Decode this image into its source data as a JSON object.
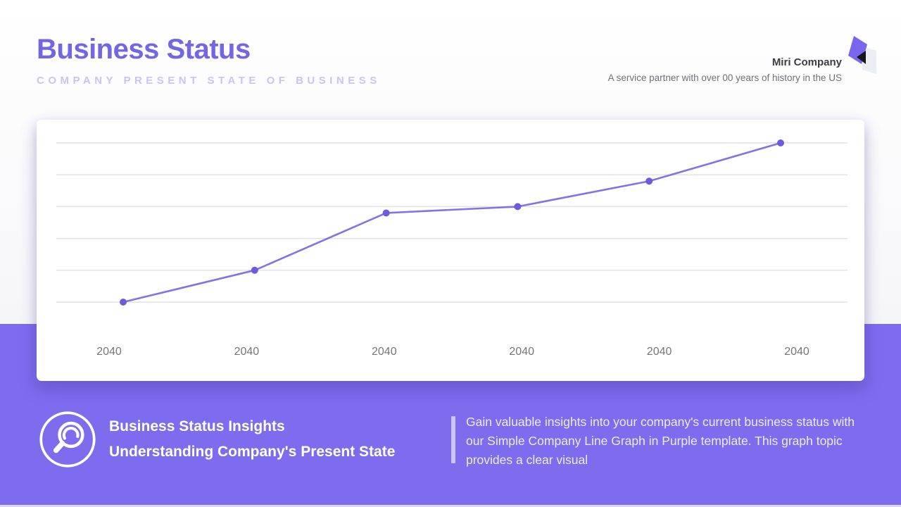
{
  "header": {
    "title": "Business Status",
    "subtitle": "COMPANY PRESENT STATE OF BUSINESS",
    "company_name": "Miri Company",
    "company_tagline": "A service partner with over 00 years of history in the US"
  },
  "footer": {
    "heading_line1": "Business Status Insights",
    "heading_line2": "Understanding Company's Present State",
    "description": "Gain valuable insights into your company's current business status with our Simple Company Line Graph in Purple template. This graph topic provides a clear visual"
  },
  "icons": {
    "logo": "company-logo (purple diamond with black triangle and light card)",
    "magnifier": "magnifier-in-circle"
  },
  "colors": {
    "accent_purple": "#7d6cee",
    "title_purple": "#7266e3",
    "subtitle_lavender": "#cac4f2",
    "line_purple": "#8173e9",
    "dot_purple": "#6c5cdb",
    "gridline_gray": "#e3e3e7",
    "axis_label_gray": "#77757a",
    "brand_name_gray": "#3c3c42",
    "brand_tagline_gray": "#717176"
  },
  "chart_data": {
    "type": "line",
    "categories": [
      "2040",
      "2040",
      "2040",
      "2040",
      "2040",
      "2040"
    ],
    "values": [
      0,
      10,
      28,
      30,
      38,
      50
    ],
    "title": "",
    "xlabel": "",
    "ylabel": "",
    "ylim": [
      0,
      50
    ],
    "gridlines": 6,
    "grid": true,
    "legend": "none",
    "y_axis_labels": false,
    "marker": "circle"
  }
}
